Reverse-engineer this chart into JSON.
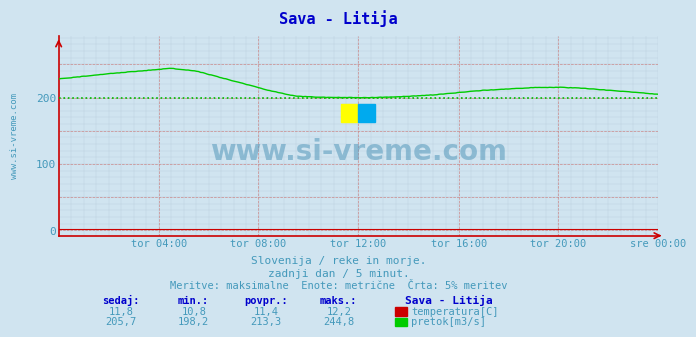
{
  "title": "Sava - Litija",
  "title_color": "#0000cc",
  "bg_color": "#d0e4f0",
  "plot_bg_color": "#d0e4f0",
  "y_min": 0,
  "y_max": 300,
  "y_ticks": [
    0,
    100,
    200
  ],
  "avg_line_y": 200,
  "avg_line_color": "#00bb00",
  "flow_line_color": "#00cc00",
  "temp_line_color": "#cc0000",
  "x_tick_labels": [
    "tor 04:00",
    "tor 08:00",
    "tor 12:00",
    "tor 16:00",
    "tor 20:00",
    "sre 00:00"
  ],
  "x_tick_positions": [
    0.167,
    0.333,
    0.5,
    0.667,
    0.833,
    1.0
  ],
  "grid_major_color": "#cc8888",
  "grid_minor_color": "#bbccdd",
  "axis_color": "#cc0000",
  "subtitle_color": "#4499bb",
  "watermark_color": "#5599bb",
  "ylabel_text": "www.si-vreme.com",
  "ylabel_color": "#4499bb",
  "watermark_text": "www.si-vreme.com",
  "subtitle1": "Slovenija / reke in morje.",
  "subtitle2": "zadnji dan / 5 minut.",
  "subtitle3": "Meritve: maksimalne  Enote: metrične  Črta: 5% meritev",
  "temp_vals": [
    "11,8",
    "10,8",
    "11,4",
    "12,2"
  ],
  "flow_vals": [
    "205,7",
    "198,2",
    "213,3",
    "244,8"
  ],
  "headers": [
    "sedaj:",
    "min.:",
    "povpr.:",
    "maks.:"
  ],
  "legend_title": "Sava - Litija",
  "legend_temp": "temperatura[C]",
  "legend_flow": "pretok[m3/s]"
}
